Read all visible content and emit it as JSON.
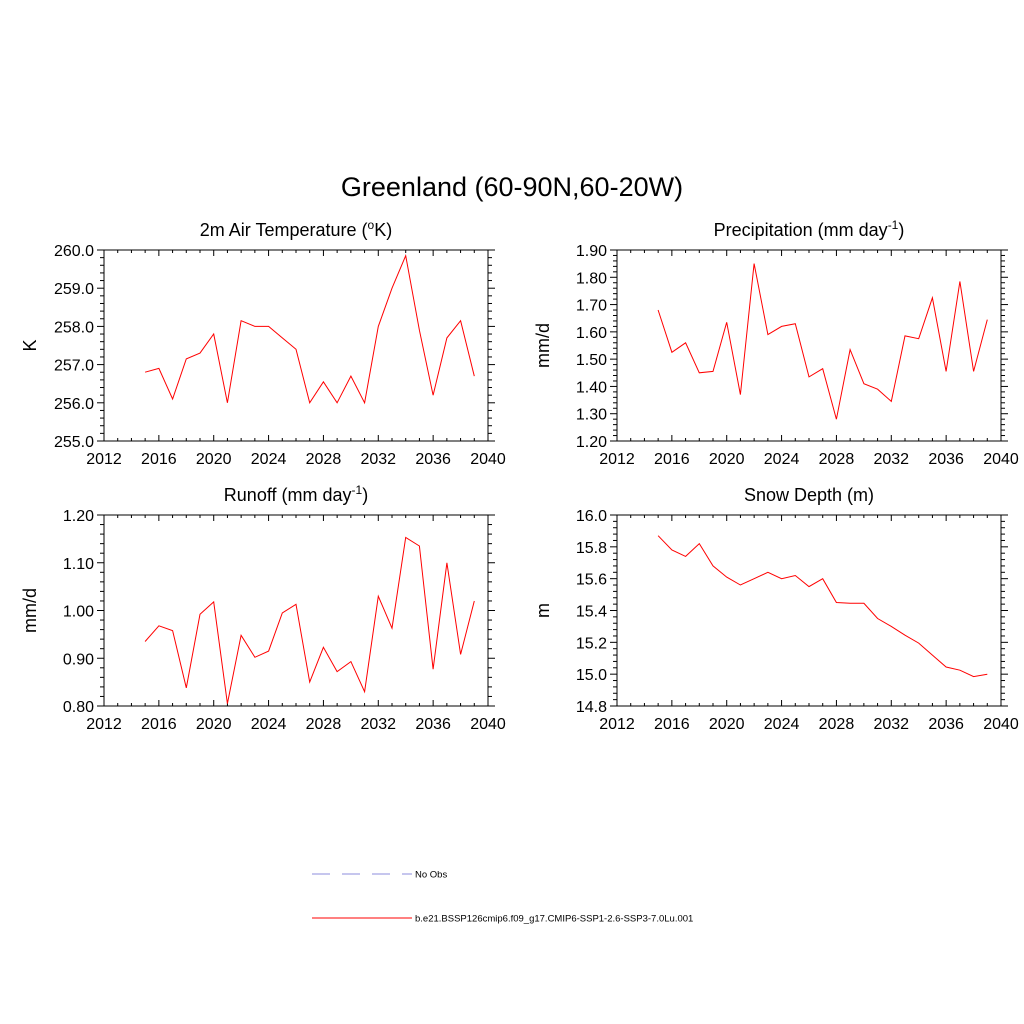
{
  "title": "Greenland (60-90N,60-20W)",
  "chart_data": [
    {
      "type": "line",
      "title_main": "2m Air Temperature (",
      "title_sup": "o",
      "title_end": "K)",
      "ylabel": "K",
      "xlim": [
        2012,
        2040
      ],
      "ylim": [
        255.0,
        260.0
      ],
      "xticks": [
        "2012",
        "2016",
        "2020",
        "2024",
        "2028",
        "2032",
        "2036",
        "2040"
      ],
      "yticks": [
        "255.0",
        "256.0",
        "257.0",
        "258.0",
        "259.0",
        "260.0"
      ],
      "series": [
        {
          "x": [
            2015,
            2016,
            2017,
            2018,
            2019,
            2020,
            2021,
            2022,
            2023,
            2024,
            2025,
            2026,
            2027,
            2028,
            2029,
            2030,
            2031,
            2032,
            2033,
            2034,
            2035,
            2036,
            2037,
            2038,
            2039
          ],
          "y": [
            256.8,
            256.9,
            256.1,
            257.15,
            257.3,
            257.8,
            256.0,
            258.15,
            258.0,
            258.0,
            257.7,
            257.4,
            256.0,
            256.55,
            256.0,
            256.7,
            256.0,
            258.0,
            259.0,
            259.85,
            257.9,
            256.2,
            257.7,
            258.15,
            256.7
          ]
        }
      ]
    },
    {
      "type": "line",
      "title_main": "Precipitation (mm day",
      "title_sup": "-1",
      "title_end": ")",
      "ylabel": "mm/d",
      "xlim": [
        2012,
        2040
      ],
      "ylim": [
        1.2,
        1.9
      ],
      "xticks": [
        "2012",
        "2016",
        "2020",
        "2024",
        "2028",
        "2032",
        "2036",
        "2040"
      ],
      "yticks": [
        "1.20",
        "1.30",
        "1.40",
        "1.50",
        "1.60",
        "1.70",
        "1.80",
        "1.90"
      ],
      "series": [
        {
          "x": [
            2015,
            2016,
            2017,
            2018,
            2019,
            2020,
            2021,
            2022,
            2023,
            2024,
            2025,
            2026,
            2027,
            2028,
            2029,
            2030,
            2031,
            2032,
            2033,
            2034,
            2035,
            2036,
            2037,
            2038,
            2039
          ],
          "y": [
            1.68,
            1.525,
            1.56,
            1.45,
            1.455,
            1.635,
            1.37,
            1.85,
            1.59,
            1.62,
            1.63,
            1.435,
            1.465,
            1.28,
            1.535,
            1.41,
            1.39,
            1.345,
            1.585,
            1.575,
            1.725,
            1.455,
            1.785,
            1.455,
            1.645
          ]
        }
      ]
    },
    {
      "type": "line",
      "title_main": "Runoff (mm day",
      "title_sup": "-1",
      "title_end": ")",
      "ylabel": "mm/d",
      "xlim": [
        2012,
        2040
      ],
      "ylim": [
        0.8,
        1.2
      ],
      "xticks": [
        "2012",
        "2016",
        "2020",
        "2024",
        "2028",
        "2032",
        "2036",
        "2040"
      ],
      "yticks": [
        "0.80",
        "0.90",
        "1.00",
        "1.10",
        "1.20"
      ],
      "series": [
        {
          "x": [
            2015,
            2016,
            2017,
            2018,
            2019,
            2020,
            2021,
            2022,
            2023,
            2024,
            2025,
            2026,
            2027,
            2028,
            2029,
            2030,
            2031,
            2032,
            2033,
            2034,
            2035,
            2036,
            2037,
            2038,
            2039
          ],
          "y": [
            0.935,
            0.968,
            0.958,
            0.838,
            0.992,
            1.018,
            0.805,
            0.948,
            0.902,
            0.915,
            0.995,
            1.013,
            0.85,
            0.923,
            0.872,
            0.893,
            0.83,
            1.03,
            0.963,
            1.153,
            1.135,
            0.877,
            1.1,
            0.908,
            1.02
          ]
        }
      ]
    },
    {
      "type": "line",
      "title_main": "Snow Depth (m)",
      "title_sup": "",
      "title_end": "",
      "ylabel": "m",
      "xlim": [
        2012,
        2040
      ],
      "ylim": [
        14.8,
        16.0
      ],
      "xticks": [
        "2012",
        "2016",
        "2020",
        "2024",
        "2028",
        "2032",
        "2036",
        "2040"
      ],
      "yticks": [
        "14.8",
        "15.0",
        "15.2",
        "15.4",
        "15.6",
        "15.8",
        "16.0"
      ],
      "series": [
        {
          "x": [
            2015,
            2016,
            2017,
            2018,
            2019,
            2020,
            2021,
            2022,
            2023,
            2024,
            2025,
            2026,
            2027,
            2028,
            2029,
            2030,
            2031,
            2032,
            2033,
            2034,
            2035,
            2036,
            2037,
            2038,
            2039
          ],
          "y": [
            15.87,
            15.78,
            15.74,
            15.82,
            15.68,
            15.61,
            15.56,
            15.6,
            15.64,
            15.6,
            15.62,
            15.55,
            15.6,
            15.45,
            15.445,
            15.445,
            15.35,
            15.3,
            15.245,
            15.195,
            15.12,
            15.045,
            15.025,
            14.985,
            15.0
          ]
        }
      ]
    }
  ],
  "legend": {
    "items": [
      {
        "label": "No Obs",
        "color": "#8c8cdc",
        "style": "dashed"
      },
      {
        "label": "b.e21.BSSP126cmip6.f09_g17.CMIP6-SSP1-2.6-SSP3-7.0Lu.001",
        "color": "#ff0000",
        "style": "solid"
      }
    ]
  }
}
